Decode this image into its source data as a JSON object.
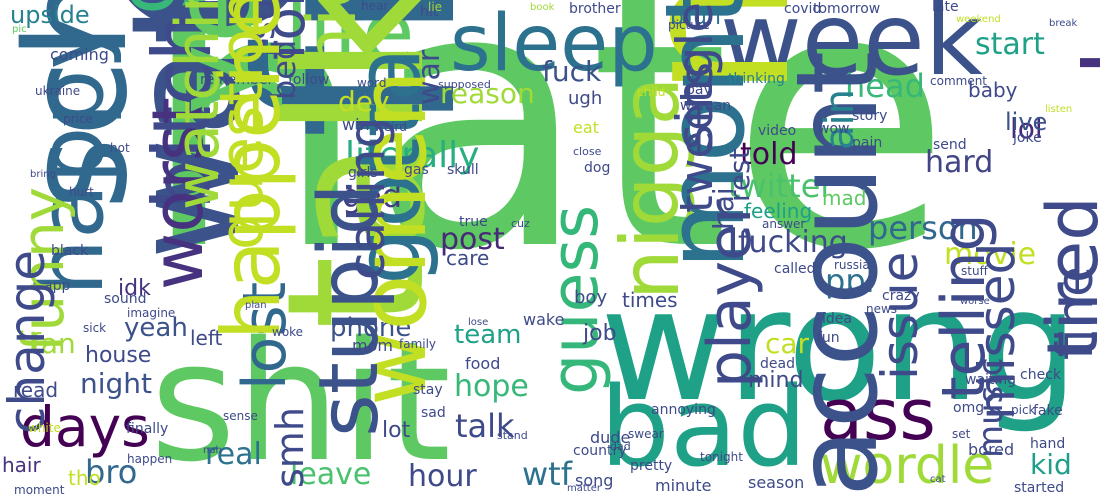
{
  "words": [
    {
      "text": "hate",
      "color": "#5ec962"
    },
    {
      "text": "wrong",
      "color": "#1fa187"
    },
    {
      "text": "shit",
      "color": "#5ec962"
    },
    {
      "text": "week",
      "color": "#3b528b"
    },
    {
      "text": "damn",
      "color": "#3b528b"
    },
    {
      "text": "life",
      "color": "#5ec962"
    },
    {
      "text": "sleep",
      "color": "#2c728e"
    },
    {
      "text": "bad",
      "color": "#1fa187"
    },
    {
      "text": "ass",
      "color": "#440154"
    },
    {
      "text": "wordle",
      "color": "#a0da39"
    },
    {
      "text": "days",
      "color": "#440154"
    },
    {
      "text": "friend",
      "color": "#31688e"
    },
    {
      "text": "money",
      "color": "#c2df23"
    },
    {
      "text": "literally",
      "color": "#28ae80"
    },
    {
      "text": "twitter",
      "color": "#4ac16d"
    },
    {
      "text": "fucking",
      "color": "#3e4a89"
    },
    {
      "text": "person",
      "color": "#31688e"
    },
    {
      "text": "fuck",
      "color": "#3b528b"
    },
    {
      "text": "reason",
      "color": "#a0da39"
    },
    {
      "text": "start",
      "color": "#1fa187"
    },
    {
      "text": "head",
      "color": "#37b878"
    },
    {
      "text": "lol",
      "color": "#482878"
    },
    {
      "text": "hard",
      "color": "#414487"
    },
    {
      "text": "told",
      "color": "#440154"
    },
    {
      "text": "post",
      "color": "#482878"
    },
    {
      "text": "god",
      "color": "#443983"
    },
    {
      "text": "talk",
      "color": "#3e4a89"
    },
    {
      "text": "night",
      "color": "#3b528b"
    },
    {
      "text": "wtf",
      "color": "#2c728e"
    },
    {
      "text": "hour",
      "color": "#3e4a89"
    },
    {
      "text": "leave",
      "color": "#4ac16d"
    },
    {
      "text": "real",
      "color": "#2c728e"
    },
    {
      "text": "movie",
      "color": "#c2df23"
    },
    {
      "text": "phone",
      "color": "#3b528b"
    },
    {
      "text": "team",
      "color": "#1fa187"
    },
    {
      "text": "hope",
      "color": "#37b878"
    },
    {
      "text": "kid",
      "color": "#1f9e89"
    },
    {
      "text": "watch",
      "color": "#3b528b"
    },
    {
      "text": "talking",
      "color": "#a0da39"
    },
    {
      "text": "school",
      "color": "#31688e"
    },
    {
      "text": "guys",
      "color": "#37b878"
    },
    {
      "text": "upside",
      "color": "#26828e"
    },
    {
      "text": "bro",
      "color": "#31688e"
    },
    {
      "text": "nigga",
      "color": "#a0da39"
    },
    {
      "text": "month",
      "color": "#2c728e"
    },
    {
      "text": "gotta",
      "color": "#2c728e"
    },
    {
      "text": "lost",
      "color": "#31688e"
    },
    {
      "text": "understand",
      "color": "#26828e"
    },
    {
      "text": "ppl",
      "color": "#2c728e"
    },
    {
      "text": "feeling",
      "color": "#1fa187"
    },
    {
      "text": "car",
      "color": "#c2df23"
    },
    {
      "text": "mind",
      "color": "#3e4a89"
    },
    {
      "text": "lot",
      "color": "#3e4a89"
    },
    {
      "text": "women",
      "color": "#c2df23"
    },
    {
      "text": "guess",
      "color": "#35b779"
    },
    {
      "text": "yeah",
      "color": "#3b528b"
    },
    {
      "text": "fan",
      "color": "#a0da39"
    },
    {
      "text": "house",
      "color": "#3e4a89"
    },
    {
      "text": "account",
      "color": "#3b528b"
    },
    {
      "text": "stupid",
      "color": "#3b528b"
    },
    {
      "text": "ain",
      "color": "#26828e"
    },
    {
      "text": "dey",
      "color": "#c2df23"
    },
    {
      "text": "mad",
      "color": "#5ec962"
    },
    {
      "text": "live",
      "color": "#3b528b"
    },
    {
      "text": "baby",
      "color": "#3e4a89"
    },
    {
      "text": "playing",
      "color": "#46327e"
    },
    {
      "text": "tired",
      "color": "#3e4a89"
    },
    {
      "text": "job",
      "color": "#3e4a89"
    },
    {
      "text": "idk",
      "color": "#46327e"
    },
    {
      "text": "bitch",
      "color": "#3e4a89"
    },
    {
      "text": "worst",
      "color": "#46327e"
    },
    {
      "text": "happy",
      "color": "#31688e"
    },
    {
      "text": "funny",
      "color": "#a0da39"
    },
    {
      "text": "read",
      "color": "#3e4a89"
    },
    {
      "text": "left",
      "color": "#3e4a89"
    },
    {
      "text": "mom",
      "color": "#3e4a89"
    },
    {
      "text": "boy",
      "color": "#3e4a89"
    },
    {
      "text": "times",
      "color": "#3e4a89"
    },
    {
      "text": "care",
      "color": "#3e4a89"
    },
    {
      "text": "bruh",
      "color": "#2c728e"
    },
    {
      "text": "nice",
      "color": "#a0da39"
    },
    {
      "text": "coming",
      "color": "#3e4a89"
    },
    {
      "text": "yesterday",
      "color": "#5ec962"
    },
    {
      "text": "hair",
      "color": "#46327e"
    },
    {
      "text": "tho",
      "color": "#c2df23"
    },
    {
      "text": "dude",
      "color": "#3e4a89"
    },
    {
      "text": "song",
      "color": "#3e4a89"
    },
    {
      "text": "minute",
      "color": "#3e4a89"
    },
    {
      "text": "season",
      "color": "#3e4a89"
    },
    {
      "text": "check",
      "color": "#3e4a89"
    },
    {
      "text": "hand",
      "color": "#3e4a89"
    },
    {
      "text": "started",
      "color": "#3e4a89"
    },
    {
      "text": "brother",
      "color": "#3e4a89"
    },
    {
      "text": "tomorrow",
      "color": "#3e4a89"
    },
    {
      "text": "covid",
      "color": "#3e4a89"
    },
    {
      "text": "late",
      "color": "#3e4a89"
    },
    {
      "text": "hear",
      "color": "#3e4a89"
    },
    {
      "text": "hit",
      "color": "#3e4a89"
    },
    {
      "text": "lie",
      "color": "#a0da39"
    },
    {
      "text": "book",
      "color": "#a0da39"
    },
    {
      "text": "picture",
      "color": "#3e4a89"
    },
    {
      "text": "pay",
      "color": "#3e4a89"
    },
    {
      "text": "woman",
      "color": "#3e4a89"
    },
    {
      "text": "thinking",
      "color": "#26828e"
    },
    {
      "text": "comment",
      "color": "#3e4a89"
    },
    {
      "text": "weekend",
      "color": "#c2df23"
    },
    {
      "text": "break",
      "color": "#3e4a89"
    },
    {
      "text": "listen",
      "color": "#c2df23"
    },
    {
      "text": "remember",
      "color": "#3e4a89"
    },
    {
      "text": "follow",
      "color": "#3e4a89"
    },
    {
      "text": "word",
      "color": "#3e4a89"
    },
    {
      "text": "supposed",
      "color": "#3e4a89"
    },
    {
      "text": "forgot",
      "color": "#3e4a89"
    },
    {
      "text": "suck",
      "color": "#3e4a89"
    },
    {
      "text": "ugh",
      "color": "#3e4a89"
    },
    {
      "text": "child",
      "color": "#c2df23"
    },
    {
      "text": "war",
      "color": "#3e4a89"
    },
    {
      "text": "ukraine",
      "color": "#3e4a89"
    },
    {
      "text": "pic",
      "color": "#5ec962"
    },
    {
      "text": "price",
      "color": "#3e4a89"
    },
    {
      "text": "hot",
      "color": "#3e4a89"
    },
    {
      "text": "bring",
      "color": "#3e4a89"
    },
    {
      "text": "hurt",
      "color": "#3e4a89"
    },
    {
      "text": "watching",
      "color": "#a0da39"
    },
    {
      "text": "black",
      "color": "#3e4a89"
    },
    {
      "text": "app",
      "color": "#3e4a89"
    },
    {
      "text": "sound",
      "color": "#3e4a89"
    },
    {
      "text": "imagine",
      "color": "#3e4a89"
    },
    {
      "text": "sick",
      "color": "#3e4a89"
    },
    {
      "text": "change",
      "color": "#3e4a89"
    },
    {
      "text": "white",
      "color": "#c2df23"
    },
    {
      "text": "finally",
      "color": "#3e4a89"
    },
    {
      "text": "happen",
      "color": "#3e4a89"
    },
    {
      "text": "moment",
      "color": "#3e4a89"
    },
    {
      "text": "sense",
      "color": "#3e4a89"
    },
    {
      "text": "smh",
      "color": "#3e4a89"
    },
    {
      "text": "win",
      "color": "#3e4a89"
    },
    {
      "text": "weird",
      "color": "#3e4a89"
    },
    {
      "text": "girls",
      "color": "#3e4a89"
    },
    {
      "text": "gas",
      "color": "#3e4a89"
    },
    {
      "text": "skull",
      "color": "#3e4a89"
    },
    {
      "text": "bed",
      "color": "#3e4a89"
    },
    {
      "text": "happened",
      "color": "#c2df23"
    },
    {
      "text": "question",
      "color": "#c2df23"
    },
    {
      "text": "calling",
      "color": "#3e4a89"
    },
    {
      "text": "eat",
      "color": "#c2df23"
    },
    {
      "text": "close",
      "color": "#3e4a89"
    },
    {
      "text": "dog",
      "color": "#3e4a89"
    },
    {
      "text": "true",
      "color": "#3e4a89"
    },
    {
      "text": "cuz",
      "color": "#3e4a89"
    },
    {
      "text": "single",
      "color": "#3e4a89"
    },
    {
      "text": "tweets",
      "color": "#3e4a89"
    },
    {
      "text": "hai",
      "color": "#3e4a89"
    },
    {
      "text": "video",
      "color": "#3e4a89"
    },
    {
      "text": "wow",
      "color": "#3e4a89"
    },
    {
      "text": "pain",
      "color": "#3e4a89"
    },
    {
      "text": "story",
      "color": "#3e4a89"
    },
    {
      "text": "joke",
      "color": "#3e4a89"
    },
    {
      "text": "send",
      "color": "#3e4a89"
    },
    {
      "text": "rest",
      "color": "#3e4a89"
    },
    {
      "text": "answer",
      "color": "#3e4a89"
    },
    {
      "text": "called",
      "color": "#3e4a89"
    },
    {
      "text": "russia",
      "color": "#3e4a89"
    },
    {
      "text": "crazy",
      "color": "#3e4a89"
    },
    {
      "text": "news",
      "color": "#3e4a89"
    },
    {
      "text": "stuff",
      "color": "#3e4a89"
    },
    {
      "text": "worse",
      "color": "#3e4a89"
    },
    {
      "text": "plan",
      "color": "#3e4a89"
    },
    {
      "text": "woke",
      "color": "#3e4a89"
    },
    {
      "text": "lose",
      "color": "#3e4a89"
    },
    {
      "text": "wake",
      "color": "#3e4a89"
    },
    {
      "text": "family",
      "color": "#3e4a89"
    },
    {
      "text": "food",
      "color": "#3e4a89"
    },
    {
      "text": "player",
      "color": "#3e4a89"
    },
    {
      "text": "idea",
      "color": "#3e4a89"
    },
    {
      "text": "fun",
      "color": "#3e4a89"
    },
    {
      "text": "dead",
      "color": "#3e4a89"
    },
    {
      "text": "issue",
      "color": "#3e4a89"
    },
    {
      "text": "telling",
      "color": "#3e4a89"
    },
    {
      "text": "waiting",
      "color": "#3e4a89"
    },
    {
      "text": "fine",
      "color": "#3e4a89"
    },
    {
      "text": "omg",
      "color": "#3e4a89"
    },
    {
      "text": "missed",
      "color": "#3e4a89"
    },
    {
      "text": "fake",
      "color": "#3e4a89"
    },
    {
      "text": "pick",
      "color": "#3e4a89"
    },
    {
      "text": "bored",
      "color": "#3e4a89"
    },
    {
      "text": "music",
      "color": "#3e4a89"
    },
    {
      "text": "set",
      "color": "#3e4a89"
    },
    {
      "text": "stay",
      "color": "#3e4a89"
    },
    {
      "text": "sad",
      "color": "#3e4a89"
    },
    {
      "text": "stand",
      "color": "#3e4a89"
    },
    {
      "text": "country",
      "color": "#3e4a89"
    },
    {
      "text": "swear",
      "color": "#3e4a89"
    },
    {
      "text": "annoying",
      "color": "#3e4a89"
    },
    {
      "text": "dad",
      "color": "#3e4a89"
    },
    {
      "text": "pretty",
      "color": "#3e4a89"
    },
    {
      "text": "matter",
      "color": "#3e4a89"
    },
    {
      "text": "nah",
      "color": "#3e4a89"
    },
    {
      "text": "tonight",
      "color": "#3e4a89"
    },
    {
      "text": "cat",
      "color": "#3e4a89"
    }
  ]
}
